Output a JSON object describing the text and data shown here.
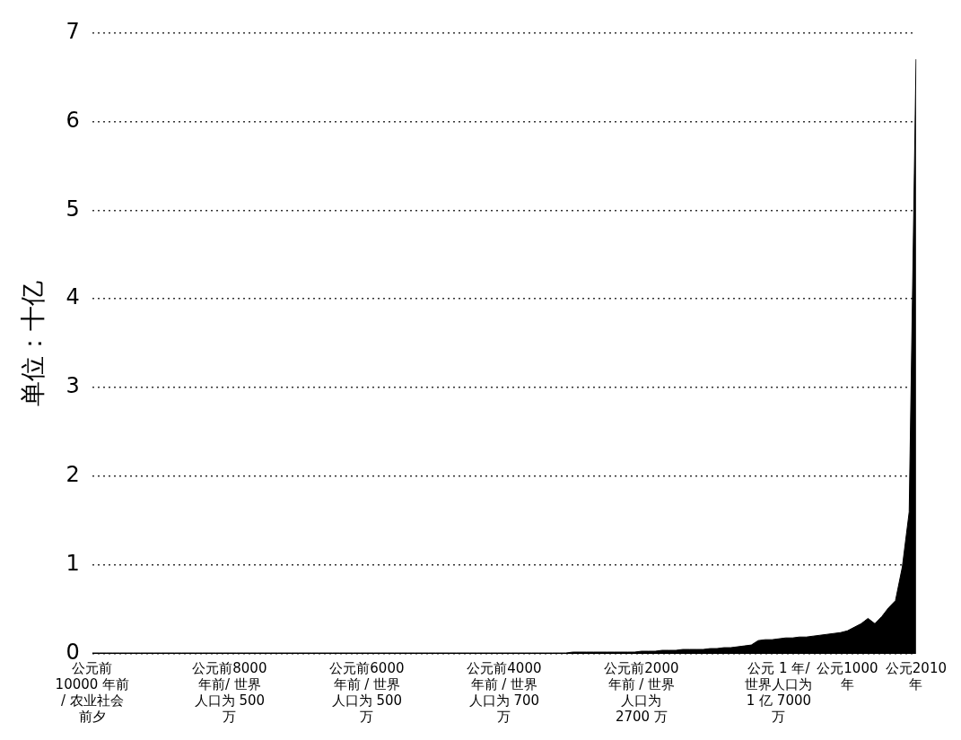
{
  "chart_data": {
    "type": "area",
    "ylabel": "单位：十亿",
    "categories": [
      "公元前10000 年前/ 农业社会前夕",
      null,
      null,
      null,
      null,
      null,
      null,
      null,
      null,
      null,
      null,
      null,
      null,
      null,
      null,
      null,
      null,
      null,
      null,
      null,
      "公元前8000 年前/ 世界人口为 500 万",
      null,
      null,
      null,
      null,
      null,
      null,
      null,
      null,
      null,
      null,
      null,
      null,
      null,
      null,
      null,
      null,
      null,
      null,
      null,
      "公元前6000 年前 / 世界人口为 500 万",
      null,
      null,
      null,
      null,
      null,
      null,
      null,
      null,
      null,
      null,
      null,
      null,
      null,
      null,
      null,
      null,
      null,
      null,
      null,
      "公元前4000 年前 / 世界人口为 700 万",
      null,
      null,
      null,
      null,
      null,
      null,
      null,
      null,
      null,
      null,
      null,
      null,
      null,
      null,
      null,
      null,
      null,
      null,
      null,
      "公元前2000 年前 / 世界人口为 2700 万",
      null,
      null,
      null,
      null,
      null,
      null,
      null,
      null,
      null,
      null,
      null,
      null,
      null,
      null,
      null,
      null,
      null,
      null,
      null,
      "公元 1 年/ 世界人口为1 亿 7000 万",
      null,
      null,
      null,
      null,
      null,
      null,
      null,
      null,
      null,
      "公元1000 年",
      null,
      null,
      null,
      null,
      null,
      null,
      null,
      null,
      null,
      "公元2010 年"
    ],
    "series": [
      {
        "color": "#000000",
        "values": [
          0.01,
          0.01,
          0.01,
          0.01,
          0.01,
          0.01,
          0.01,
          0.01,
          0.01,
          0.01,
          0.01,
          0.01,
          0.01,
          0.01,
          0.01,
          0.01,
          0.01,
          0.01,
          0.01,
          0.01,
          0.01,
          0.01,
          0.01,
          0.01,
          0.01,
          0.01,
          0.01,
          0.01,
          0.01,
          0.01,
          0.01,
          0.01,
          0.01,
          0.01,
          0.01,
          0.01,
          0.01,
          0.01,
          0.01,
          0.01,
          0.01,
          0.01,
          0.01,
          0.01,
          0.01,
          0.01,
          0.01,
          0.01,
          0.01,
          0.01,
          0.01,
          0.01,
          0.01,
          0.01,
          0.01,
          0.01,
          0.01,
          0.01,
          0.01,
          0.01,
          0.01,
          0.01,
          0.01,
          0.01,
          0.01,
          0.01,
          0.01,
          0.01,
          0.01,
          0.01,
          0.02,
          0.02,
          0.02,
          0.02,
          0.02,
          0.02,
          0.02,
          0.02,
          0.02,
          0.02,
          0.03,
          0.03,
          0.03,
          0.04,
          0.04,
          0.04,
          0.05,
          0.05,
          0.05,
          0.05,
          0.06,
          0.06,
          0.07,
          0.07,
          0.08,
          0.09,
          0.1,
          0.15,
          0.16,
          0.16,
          0.17,
          0.18,
          0.18,
          0.19,
          0.19,
          0.2,
          0.21,
          0.22,
          0.23,
          0.24,
          0.26,
          0.3,
          0.34,
          0.4,
          0.34,
          0.42,
          0.52,
          0.6,
          0.98,
          1.6,
          6.7
        ]
      }
    ],
    "ylim": [
      0,
      7
    ],
    "yticks": [
      0,
      1,
      2,
      3,
      4,
      5,
      6,
      7
    ],
    "grid": "y",
    "legend": false,
    "marker": "none"
  }
}
